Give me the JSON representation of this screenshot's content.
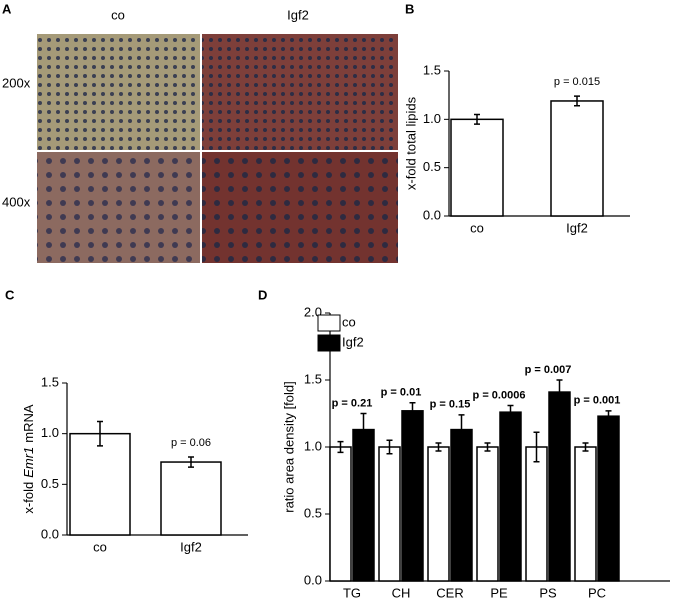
{
  "chart_data": [
    {
      "type": "image-grid",
      "panel": "A",
      "columns": [
        "co",
        "Igf2"
      ],
      "rows": [
        "200x",
        "400x"
      ]
    },
    {
      "type": "bar",
      "panel": "B",
      "ylabel": "x-fold total lipids",
      "categories": [
        "co",
        "Igf2"
      ],
      "values": [
        1.0,
        1.19
      ],
      "errors": [
        0.05,
        0.05
      ],
      "colors": [
        "#ffffff",
        "#ffffff"
      ],
      "annotation": "p = 0.015",
      "ylim": [
        0,
        1.5
      ],
      "yticks": [
        {
          "value": 0,
          "label": "0.0"
        },
        {
          "value": 0.5,
          "label": "0.5"
        },
        {
          "value": 1.0,
          "label": "1.0"
        },
        {
          "value": 1.5,
          "label": "1.5"
        }
      ]
    },
    {
      "type": "bar",
      "panel": "C",
      "ylabel": [
        "x-fold",
        "Emr1",
        "mRNA"
      ],
      "categories": [
        "co",
        "Igf2"
      ],
      "values": [
        1.0,
        0.72
      ],
      "errors": [
        0.12,
        0.05
      ],
      "colors": [
        "#ffffff",
        "#ffffff"
      ],
      "annotation": "p = 0.06",
      "ylim": [
        0,
        1.5
      ],
      "yticks": [
        {
          "value": 0,
          "label": "0.0"
        },
        {
          "value": 0.5,
          "label": "0.5"
        },
        {
          "value": 1.0,
          "label": "1.0"
        },
        {
          "value": 1.5,
          "label": "1.5"
        }
      ]
    },
    {
      "type": "grouped-bar",
      "panel": "D",
      "ylabel": "ratio area density [fold]",
      "categories": [
        "TG",
        "CH",
        "CER",
        "PE",
        "PS",
        "PC"
      ],
      "series": [
        {
          "name": "co",
          "color": "#ffffff",
          "values": [
            1.0,
            1.0,
            1.0,
            1.0,
            1.0,
            1.0
          ],
          "errors": [
            0.04,
            0.05,
            0.03,
            0.03,
            0.11,
            0.03
          ]
        },
        {
          "name": "Igf2",
          "color": "#000000",
          "values": [
            1.13,
            1.27,
            1.13,
            1.26,
            1.41,
            1.23
          ],
          "errors": [
            0.12,
            0.06,
            0.11,
            0.05,
            0.09,
            0.04
          ]
        }
      ],
      "annotations": [
        "p = 0.21",
        "p = 0.01",
        "p = 0.15",
        "p = 0.0006",
        "p = 0.007",
        "p = 0.001"
      ],
      "legend": "top-left",
      "ylim": [
        0,
        2.0
      ],
      "yticks": [
        {
          "value": 0,
          "label": "0.0"
        },
        {
          "value": 0.5,
          "label": "0.5"
        },
        {
          "value": 1.0,
          "label": "1.0"
        },
        {
          "value": 1.5,
          "label": "1.5"
        },
        {
          "value": 2.0,
          "label": "2.0"
        }
      ]
    }
  ]
}
